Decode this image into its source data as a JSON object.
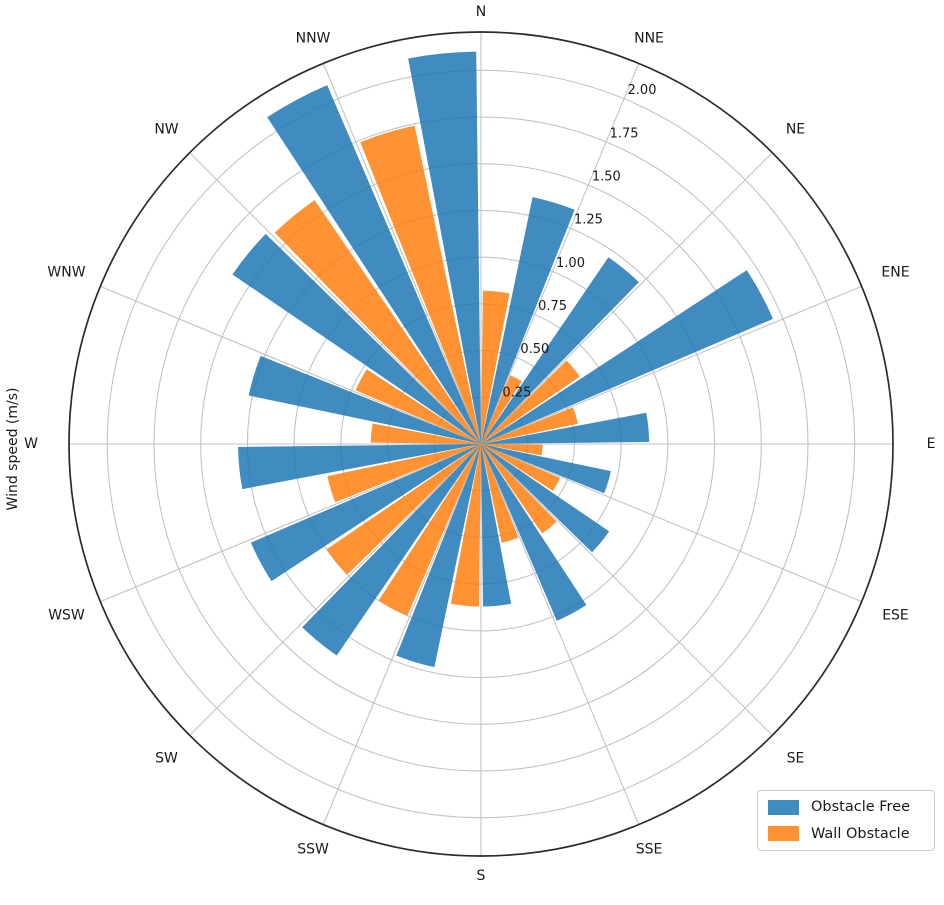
{
  "chart_data": {
    "type": "bar",
    "projection": "polar",
    "title": "",
    "ylabel": "Wind speed (m/s)",
    "categories": [
      "N",
      "NNE",
      "NE",
      "ENE",
      "E",
      "ESE",
      "SE",
      "SSE",
      "S",
      "SSW",
      "SW",
      "WSW",
      "W",
      "WNW",
      "NW",
      "NNW"
    ],
    "series": [
      {
        "name": "Obstacle Free",
        "color": "#1f77b4",
        "values": [
          2.1,
          1.35,
          1.21,
          1.7,
          0.9,
          0.71,
          0.83,
          1.03,
          0.87,
          1.22,
          1.37,
          1.34,
          1.3,
          1.27,
          1.61,
          2.09
        ]
      },
      {
        "name": "Wall Obstacle",
        "color": "#ff7f0e",
        "values": [
          0.82,
          0.4,
          0.64,
          0.53,
          0.33,
          0.46,
          0.58,
          0.54,
          0.87,
          1.0,
          1.0,
          0.84,
          0.59,
          0.73,
          1.58,
          1.74
        ]
      }
    ],
    "r_ticks": [
      0.25,
      0.5,
      0.75,
      1.0,
      1.25,
      1.5,
      1.75,
      2.0
    ],
    "r_tick_labels": [
      "0.25",
      "0.50",
      "0.75",
      "1.00",
      "1.25",
      "1.50",
      "1.75",
      "2.00"
    ],
    "r_max": 2.205,
    "r_tick_angle_deg": 22.5,
    "angle_start": "N",
    "angle_direction": "clockwise",
    "grid": true,
    "bar_alpha": 0.85,
    "legend_position": "lower right"
  }
}
